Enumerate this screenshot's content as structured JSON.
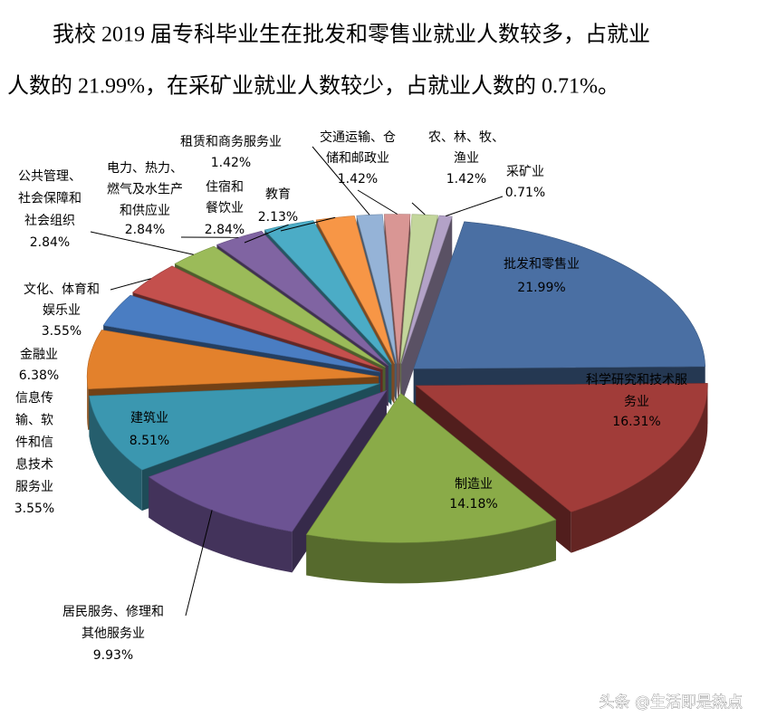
{
  "heading": {
    "lines": [
      "我校 2019 届专科毕业生在批发和零售业就业人数较多，占就业",
      "人数的 21.99%，在采矿业就业人数较少，占就业人数的 0.71%。"
    ]
  },
  "chart_data": {
    "type": "pie",
    "categories": [
      "批发和零售业",
      "科学研究和技术服务业",
      "制造业",
      "居民服务、修理和其他服务业",
      "建筑业",
      "金融业",
      "信息传输、软件和信息技术服务业",
      "文化、体育和娱乐业",
      "公共管理、社会保障和社会组织",
      "电力、热力、燃气及水生产和供应业",
      "住宿和餐饮业",
      "教育",
      "租赁和商务服务业",
      "交通运输、仓储和邮政业",
      "农、林、牧、渔业",
      "采矿业"
    ],
    "values": [
      21.99,
      16.31,
      14.18,
      9.93,
      8.51,
      6.38,
      3.55,
      3.55,
      2.84,
      2.84,
      2.84,
      2.13,
      1.42,
      1.42,
      1.42,
      0.71
    ],
    "value_labels": [
      "21.99%",
      "16.31%",
      "14.18%",
      "9.93%",
      "8.51%",
      "6.38%",
      "3.55%",
      "3.55%",
      "2.84%",
      "2.84%",
      "2.84%",
      "2.13%",
      "1.42%",
      "1.42%",
      "1.42%",
      "0.71%"
    ],
    "colors": [
      "#4a6fa3",
      "#a13c39",
      "#8aab48",
      "#6c5393",
      "#3b97b0",
      "#e3812c",
      "#4a7dc2",
      "#c4504d",
      "#9bbb59",
      "#8064a2",
      "#4bacc6",
      "#f79646",
      "#95b3d7",
      "#d99694",
      "#c3d69b",
      "#b3a2c7"
    ]
  },
  "watermark": "头条 @生活即是热点"
}
